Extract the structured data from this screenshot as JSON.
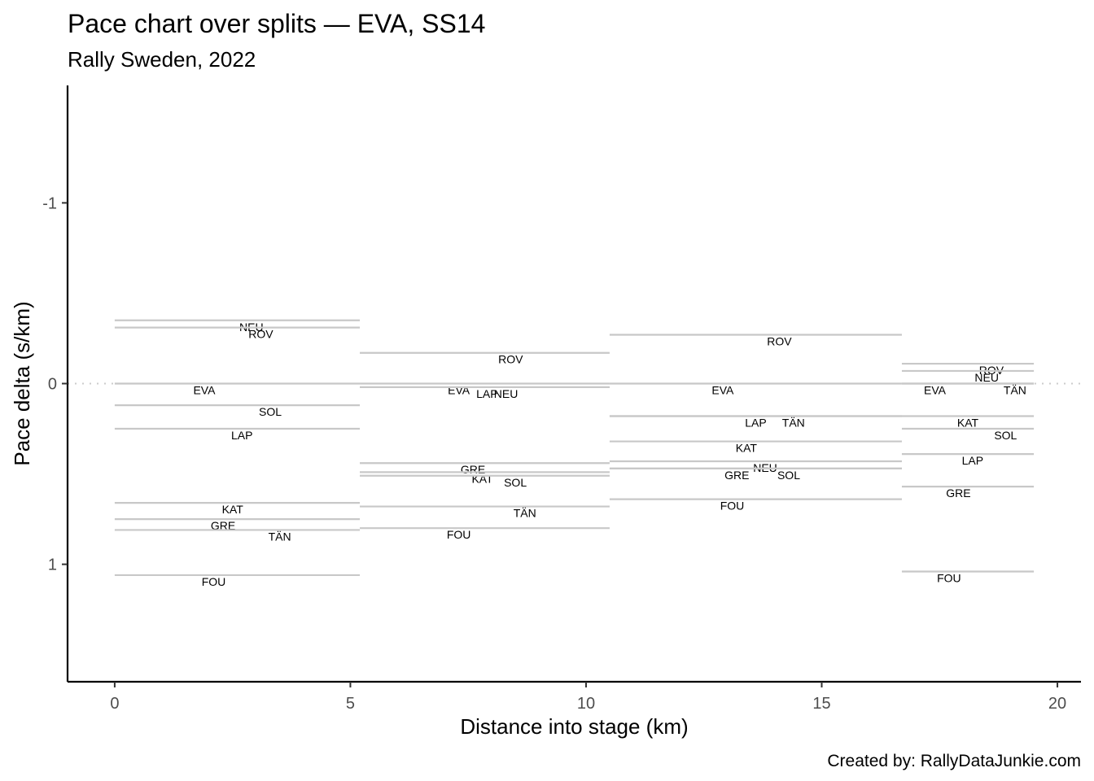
{
  "chart_data": {
    "type": "line",
    "title": "Pace chart over splits — EVA, SS14",
    "subtitle": "Rally Sweden, 2022",
    "caption": "Created by: RallyDataJunkie.com",
    "xlabel": "Distance into stage (km)",
    "ylabel": "Pace delta (s/km)",
    "xlim": [
      -1,
      20.5
    ],
    "ylim": [
      1.65,
      -1.65
    ],
    "y_reversed": true,
    "xticks": [
      0,
      5,
      10,
      15,
      20
    ],
    "yticks": [
      -1,
      0,
      1
    ],
    "reference_line": 0,
    "splits": [
      {
        "start": 0,
        "end": 5.2,
        "drivers": [
          {
            "code": "NEU",
            "pace": -0.35,
            "label_x": 2.9
          },
          {
            "code": "ROV",
            "pace": -0.31,
            "label_x": 3.1
          },
          {
            "code": "EVA",
            "pace": 0.0,
            "label_x": 1.9
          },
          {
            "code": "SOL",
            "pace": 0.12,
            "label_x": 3.3
          },
          {
            "code": "LAP",
            "pace": 0.25,
            "label_x": 2.7
          },
          {
            "code": "KAT",
            "pace": 0.66,
            "label_x": 2.5
          },
          {
            "code": "GRE",
            "pace": 0.75,
            "label_x": 2.3
          },
          {
            "code": "TÄN",
            "pace": 0.81,
            "label_x": 3.5
          },
          {
            "code": "FOU",
            "pace": 1.06,
            "label_x": 2.1
          }
        ]
      },
      {
        "start": 5.2,
        "end": 10.5,
        "drivers": [
          {
            "code": "ROV",
            "pace": -0.17,
            "label_x": 8.4
          },
          {
            "code": "EVA",
            "pace": 0.0,
            "label_x": 7.3
          },
          {
            "code": "LAP",
            "pace": 0.02,
            "label_x": 7.9
          },
          {
            "code": "NEU",
            "pace": 0.02,
            "label_x": 8.3
          },
          {
            "code": "GRE",
            "pace": 0.44,
            "label_x": 7.6
          },
          {
            "code": "KAT",
            "pace": 0.49,
            "label_x": 7.8
          },
          {
            "code": "SOL",
            "pace": 0.51,
            "label_x": 8.5
          },
          {
            "code": "TÄN",
            "pace": 0.68,
            "label_x": 8.7
          },
          {
            "code": "FOU",
            "pace": 0.8,
            "label_x": 7.3
          }
        ]
      },
      {
        "start": 10.5,
        "end": 16.7,
        "drivers": [
          {
            "code": "ROV",
            "pace": -0.27,
            "label_x": 14.1
          },
          {
            "code": "EVA",
            "pace": 0.0,
            "label_x": 12.9
          },
          {
            "code": "LAP",
            "pace": 0.18,
            "label_x": 13.6
          },
          {
            "code": "TÄN",
            "pace": 0.18,
            "label_x": 14.4
          },
          {
            "code": "KAT",
            "pace": 0.32,
            "label_x": 13.4
          },
          {
            "code": "NEU",
            "pace": 0.43,
            "label_x": 13.8
          },
          {
            "code": "SOL",
            "pace": 0.47,
            "label_x": 14.3
          },
          {
            "code": "GRE",
            "pace": 0.47,
            "label_x": 13.2
          },
          {
            "code": "FOU",
            "pace": 0.64,
            "label_x": 13.1
          }
        ]
      },
      {
        "start": 16.7,
        "end": 19.5,
        "drivers": [
          {
            "code": "ROV",
            "pace": -0.11,
            "label_x": 18.6
          },
          {
            "code": "NEU",
            "pace": -0.07,
            "label_x": 18.5
          },
          {
            "code": "TÄN",
            "pace": 0.0,
            "label_x": 19.1
          },
          {
            "code": "EVA",
            "pace": 0.0,
            "label_x": 17.4
          },
          {
            "code": "KAT",
            "pace": 0.18,
            "label_x": 18.1
          },
          {
            "code": "SOL",
            "pace": 0.25,
            "label_x": 18.9
          },
          {
            "code": "LAP",
            "pace": 0.39,
            "label_x": 18.2
          },
          {
            "code": "GRE",
            "pace": 0.57,
            "label_x": 17.9
          },
          {
            "code": "FOU",
            "pace": 1.04,
            "label_x": 17.7
          }
        ]
      }
    ]
  }
}
